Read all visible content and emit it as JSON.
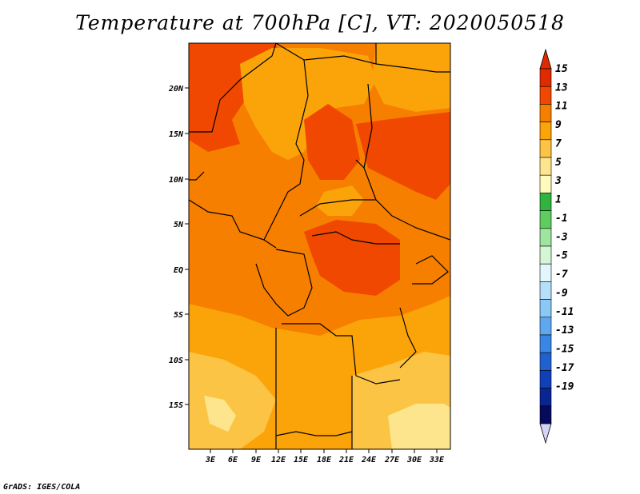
{
  "title": "Temperature at 700hPa [C], VT: 2020050518",
  "footer": "GrADS: IGES/COLA",
  "map": {
    "lat_labels": [
      "20N",
      "15N",
      "10N",
      "5N",
      "EQ",
      "5S",
      "10S",
      "15S"
    ],
    "lon_labels": [
      "3E",
      "6E",
      "9E",
      "12E",
      "15E",
      "18E",
      "21E",
      "24E",
      "27E",
      "30E",
      "33E"
    ],
    "palette": {
      "c15": "#e02a00",
      "c13": "#f04800",
      "c11": "#f77f00",
      "c9": "#fba40a",
      "c7": "#fcc445",
      "c5": "#fde58e"
    }
  },
  "colorbar": {
    "labels": [
      "15",
      "13",
      "11",
      "9",
      "7",
      "5",
      "3",
      "1",
      "-1",
      "-3",
      "-5",
      "-7",
      "-9",
      "-11",
      "-13",
      "-15",
      "-17",
      "-19"
    ],
    "colors": [
      "#e02a00",
      "#f04800",
      "#f77f00",
      "#fba40a",
      "#fcc445",
      "#fde58e",
      "#fffbbf",
      "#2fb43f",
      "#5ecc5e",
      "#9fe49f",
      "#d4f6d4",
      "#e3f6fb",
      "#b6e0fa",
      "#8cc8f5",
      "#5ea8ef",
      "#3a86e6",
      "#1f62cf",
      "#0f40b8",
      "#082591",
      "#060a5c"
    ],
    "top_triangle_color": "#e02a00",
    "bottom_triangle_color": "#d4d4f4"
  }
}
